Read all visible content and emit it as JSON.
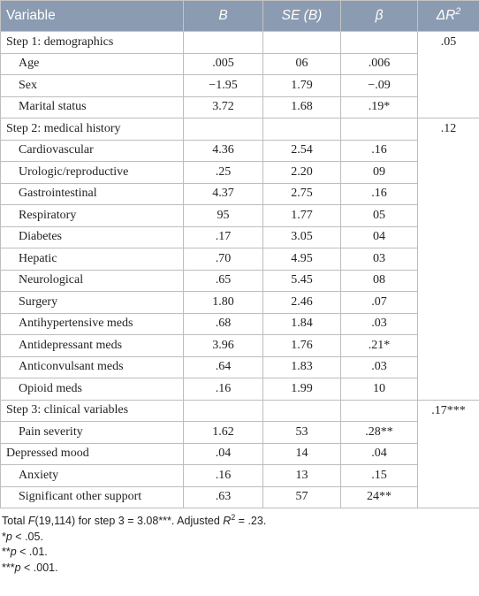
{
  "table": {
    "header": [
      "Variable",
      "B",
      "SE (B)",
      "β",
      {
        "text": "ΔR",
        "sup": "2"
      }
    ],
    "groups": [
      {
        "title": "Step 1: demographics",
        "delta_r2": ".05",
        "rows": [
          [
            "Age",
            ".005",
            "06",
            ".006"
          ],
          [
            "Sex",
            "−1.95",
            "1.79",
            "−.09"
          ],
          [
            "Marital status",
            "3.72",
            "1.68",
            ".19*"
          ]
        ]
      },
      {
        "title": "Step 2: medical history",
        "delta_r2": ".12",
        "rows": [
          [
            "Cardiovascular",
            "4.36",
            "2.54",
            ".16"
          ],
          [
            "Urologic/reproductive",
            ".25",
            "2.20",
            "09"
          ],
          [
            "Gastrointestinal",
            "4.37",
            "2.75",
            ".16"
          ],
          [
            "Respiratory",
            "95",
            "1.77",
            "05"
          ],
          [
            "Diabetes",
            ".17",
            "3.05",
            "04"
          ],
          [
            "Hepatic",
            ".70",
            "4.95",
            "03"
          ],
          [
            "Neurological",
            ".65",
            "5.45",
            "08"
          ],
          [
            "Surgery",
            "1.80",
            "2.46",
            ".07"
          ],
          [
            "Antihypertensive meds",
            ".68",
            "1.84",
            ".03"
          ],
          [
            "Antidepressant meds",
            "3.96",
            "1.76",
            ".21*"
          ],
          [
            "Anticonvulsant meds",
            ".64",
            "1.83",
            ".03"
          ],
          [
            "Opioid meds",
            ".16",
            "1.99",
            "10"
          ]
        ]
      },
      {
        "title": "Step 3: clinical variables",
        "delta_r2": ".17***",
        "rows": [
          [
            "Pain severity",
            "1.62",
            "53",
            ".28**"
          ],
          [
            "Depressed mood",
            ".04",
            "14",
            ".04"
          ],
          [
            "Anxiety",
            ".16",
            "13",
            ".15"
          ],
          [
            "Significant other support",
            ".63",
            "57",
            "24**"
          ]
        ]
      }
    ]
  },
  "footnotes": [
    [
      "Total ",
      "F",
      "(19,114) for step 3 = 3.08***. Adjusted ",
      "R",
      "2",
      " = .23."
    ],
    [
      "*",
      "p",
      " < .05."
    ],
    [
      "**",
      "p",
      " < .01."
    ],
    [
      "***",
      "p",
      " < .001."
    ]
  ]
}
